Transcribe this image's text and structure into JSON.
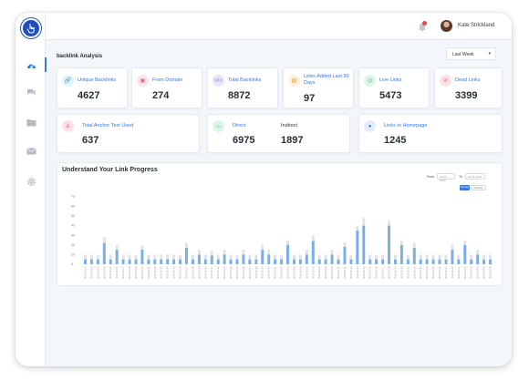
{
  "user": {
    "name": "Kate Strickland"
  },
  "page": {
    "title": "backlink Analysis",
    "period": "Last Week"
  },
  "stats_row1": [
    {
      "label": "Unique Backlinks",
      "value": "4627",
      "icon": "link-icon",
      "color": "#5bc0de",
      "bg": "#dff4fa"
    },
    {
      "label": "From Domain",
      "value": "274",
      "icon": "globe-icon",
      "color": "#e06a8a",
      "bg": "#fde3ea"
    },
    {
      "label": "Total Backlinks",
      "value": "8872",
      "icon": "code-icon",
      "color": "#8a7be0",
      "bg": "#e8e4fb"
    },
    {
      "label": "Links Added Last 30 Days",
      "value": "97",
      "icon": "calendar-icon",
      "color": "#e9a23b",
      "bg": "#fdf0dc"
    },
    {
      "label": "Live Links",
      "value": "5473",
      "icon": "signal-icon",
      "color": "#3bbf78",
      "bg": "#ddf5e8"
    },
    {
      "label": "Dead Links",
      "value": "3399",
      "icon": "broken-link-icon",
      "color": "#e8627a",
      "bg": "#fde3e7"
    }
  ],
  "anchor": {
    "label": "Total Anchor Text Used",
    "value": "637"
  },
  "direct_indirect": {
    "direct_label": "Direct",
    "direct_value": "6975",
    "indirect_label": "Indirect",
    "indirect_value": "1897",
    "icon_text": "</>"
  },
  "homepage": {
    "label": "Links to Homepage",
    "value": "1245"
  },
  "chart_controls": {
    "from_label": "From",
    "from_placeholder": "01-01-2022",
    "to_label": "To",
    "to_placeholder": "01-01-2022",
    "btn_weekly": "Weekly",
    "btn_monthly": "Monthly"
  },
  "colors": {
    "accent": "#2f7de1",
    "bar_main": "#7aaee9",
    "bar_bg": "#dfe3ea"
  },
  "chart_data": {
    "type": "bar",
    "title": "Understand Your Link Progress",
    "ylim": [
      0,
      70
    ],
    "yticks": [
      "70",
      "60",
      "50",
      "40",
      "30",
      "20",
      "10",
      "0"
    ],
    "grid": false,
    "legend": "none",
    "categories": [
      "2022-01-01",
      "2022-01-02",
      "2022-01-03",
      "2022-01-04",
      "2022-01-05",
      "2022-01-06",
      "2022-01-07",
      "2022-01-08",
      "2022-01-09",
      "2022-01-10",
      "2022-01-11",
      "2022-01-12",
      "2022-01-13",
      "2022-01-14",
      "2022-01-15",
      "2022-01-16",
      "2022-01-17",
      "2022-01-18",
      "2022-01-19",
      "2022-01-20",
      "2022-01-21",
      "2022-01-22",
      "2022-01-23",
      "2022-01-24",
      "2022-01-25",
      "2022-01-26",
      "2022-01-27",
      "2022-01-28",
      "2022-01-29",
      "2022-01-30",
      "2022-01-31",
      "2022-02-01",
      "2022-02-02",
      "2022-02-03",
      "2022-02-04",
      "2022-02-05",
      "2022-02-06",
      "2022-02-07",
      "2022-02-08",
      "2022-02-09",
      "2022-02-10",
      "2022-02-11",
      "2022-02-12",
      "2022-02-13",
      "2022-02-14",
      "2022-02-15",
      "2022-02-16",
      "2022-02-17",
      "2022-02-18",
      "2022-02-19",
      "2022-02-20",
      "2022-02-21",
      "2022-02-22",
      "2022-02-23",
      "2022-02-24",
      "2022-02-25",
      "2022-02-26",
      "2022-02-27",
      "2022-02-28",
      "2022-03-01",
      "2022-03-02",
      "2022-03-03",
      "2022-03-04",
      "2022-03-05",
      "2022-03-06"
    ],
    "series": [
      {
        "values": [
          5,
          5,
          5,
          22,
          5,
          15,
          5,
          5,
          5,
          15,
          5,
          5,
          5,
          5,
          5,
          5,
          17,
          5,
          10,
          5,
          9,
          5,
          10,
          5,
          5,
          10,
          5,
          5,
          15,
          10,
          5,
          5,
          20,
          5,
          5,
          10,
          24,
          5,
          5,
          10,
          5,
          18,
          5,
          35,
          40,
          5,
          5,
          5,
          40,
          5,
          20,
          5,
          17,
          5,
          5,
          5,
          5,
          5,
          15,
          5,
          20,
          5,
          10,
          5,
          5
        ]
      },
      {
        "values": [
          10,
          10,
          10,
          28,
          10,
          20,
          10,
          10,
          10,
          20,
          10,
          10,
          10,
          10,
          10,
          10,
          22,
          10,
          15,
          10,
          14,
          10,
          15,
          10,
          10,
          15,
          10,
          10,
          20,
          15,
          10,
          10,
          25,
          10,
          10,
          15,
          30,
          10,
          10,
          15,
          10,
          23,
          10,
          40,
          48,
          10,
          10,
          10,
          45,
          10,
          25,
          10,
          22,
          10,
          10,
          10,
          10,
          10,
          20,
          10,
          25,
          10,
          15,
          10,
          10
        ]
      }
    ]
  }
}
